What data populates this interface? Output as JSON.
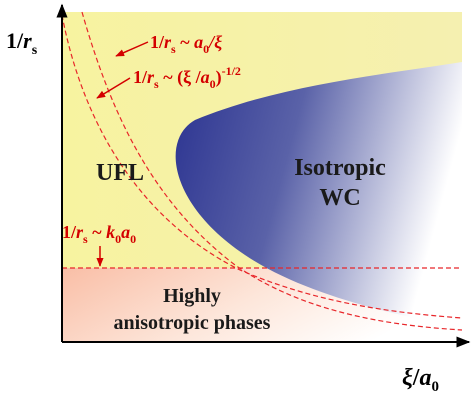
{
  "axes": {
    "y_label": {
      "main": "1/",
      "var": "r",
      "sub": "s"
    },
    "x_label": {
      "main": "ξ",
      "sep": "/",
      "var": "a",
      "sub": "0"
    }
  },
  "regions": {
    "ufl": "UFL",
    "wc_line1": "Isotropic",
    "wc_line2": "WC",
    "aniso_line1": "Highly",
    "aniso_line2": "anisotropic phases"
  },
  "curve_labels": {
    "label1": {
      "lhs": "1/",
      "r": "r",
      "s": "s",
      "rel": " ~ ",
      "a": "a",
      "zero": "0",
      "rest": "/ξ"
    },
    "label2": {
      "lhs": "1/",
      "r": "r",
      "s": "s",
      "rel": " ~ (ξ /",
      "a": "a",
      "zero": "0",
      "close": ")",
      "exp": "-1/2"
    },
    "label3": {
      "lhs": "1/",
      "r": "r",
      "s": "s",
      "rel": " ~ ",
      "k": "k",
      "kzero": "0",
      "a": "a",
      "azero": "0"
    }
  },
  "colors": {
    "ufl_fill": "#f7f4a4",
    "wc_fill_start": "#2d3590",
    "wc_fill_end": "#ffffff",
    "aniso_fill_start": "#f8c0a8",
    "curve_color": "#e8262a",
    "label_color": "#d40000"
  }
}
